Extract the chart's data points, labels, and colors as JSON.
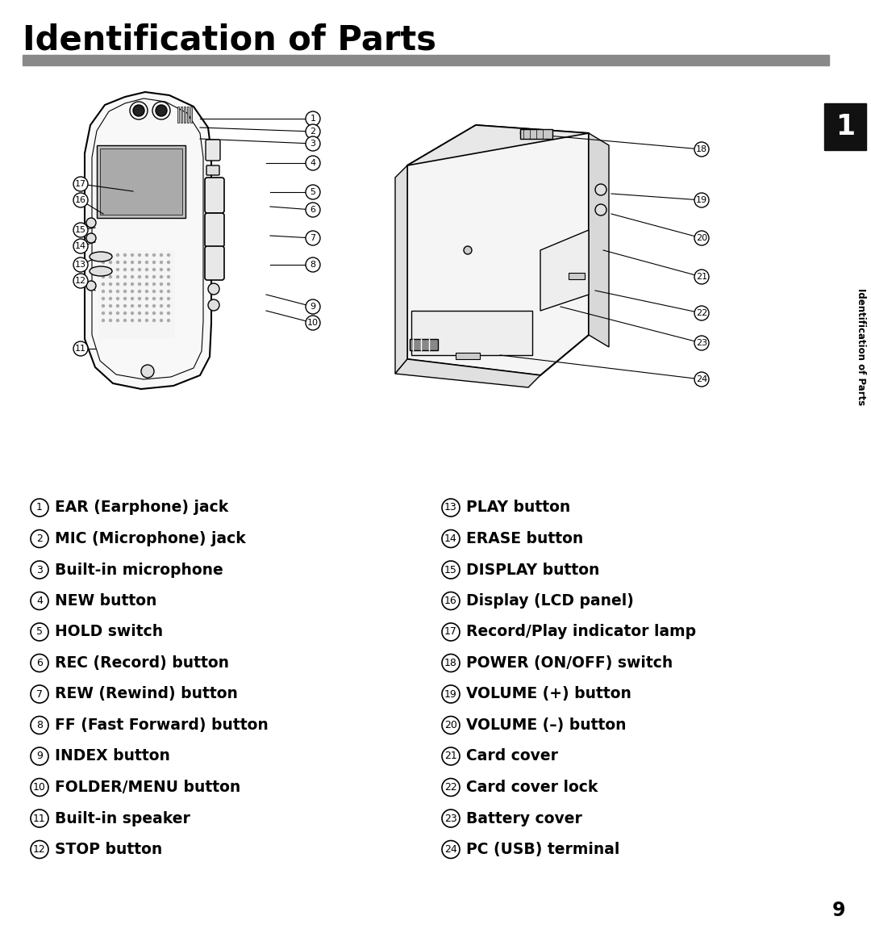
{
  "title": "Identification of Parts",
  "title_fontsize": 30,
  "title_fontweight": "bold",
  "background_color": "#ffffff",
  "page_number": "9",
  "tab_label": "Identification of Parts",
  "left_parts": [
    [
      1,
      "EAR (Earphone) jack"
    ],
    [
      2,
      "MIC (Microphone) jack"
    ],
    [
      3,
      "Built-in microphone"
    ],
    [
      4,
      "NEW button"
    ],
    [
      5,
      "HOLD switch"
    ],
    [
      6,
      "REC (Record) button"
    ],
    [
      7,
      "REW (Rewind) button"
    ],
    [
      8,
      "FF (Fast Forward) button"
    ],
    [
      9,
      "INDEX button"
    ],
    [
      10,
      "FOLDER/MENU button"
    ],
    [
      11,
      "Built-in speaker"
    ],
    [
      12,
      "STOP button"
    ]
  ],
  "right_parts": [
    [
      13,
      "PLAY button"
    ],
    [
      14,
      "ERASE button"
    ],
    [
      15,
      "DISPLAY button"
    ],
    [
      16,
      "Display (LCD panel)"
    ],
    [
      17,
      "Record/Play indicator lamp"
    ],
    [
      18,
      "POWER (ON/OFF) switch"
    ],
    [
      19,
      "VOLUME (+) button"
    ],
    [
      20,
      "VOLUME (–) button"
    ],
    [
      21,
      "Card cover"
    ],
    [
      22,
      "Card cover lock"
    ],
    [
      23,
      "Battery cover"
    ],
    [
      24,
      "PC (USB) terminal"
    ]
  ]
}
